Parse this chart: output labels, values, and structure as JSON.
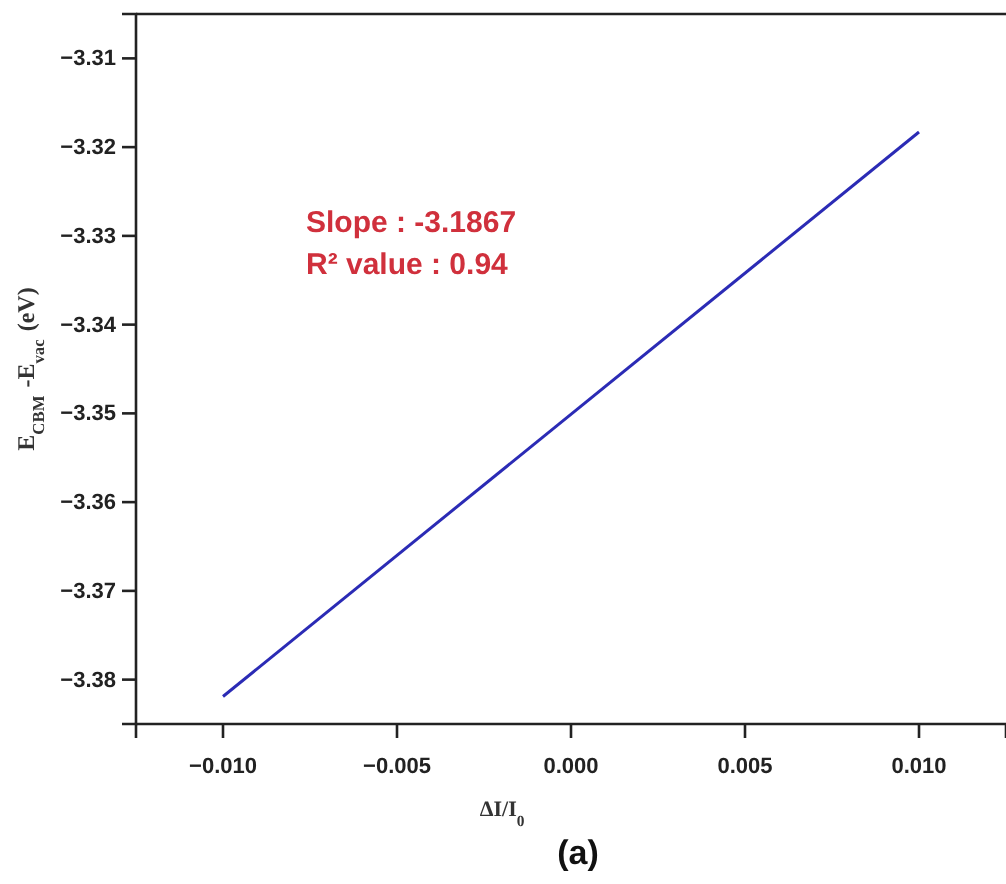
{
  "chart_data": {
    "type": "line",
    "xlabel": "ΔI/I$_{0}$",
    "ylabel": "E$_{CBM}$ -E$_{vac}$ (eV)",
    "x": [
      -0.01,
      0.01
    ],
    "series": [
      {
        "color": "#2b2bb5",
        "values": [
          -3.3819,
          -3.3183
        ]
      }
    ],
    "xlim": [
      -0.0125,
      0.0125
    ],
    "ylim": [
      -3.385,
      -3.305
    ],
    "xticks": [
      {
        "value": -0.01,
        "label": "−0.010"
      },
      {
        "value": -0.005,
        "label": "−0.005"
      },
      {
        "value": 0,
        "label": "0.000"
      },
      {
        "value": 0.005,
        "label": "0.005"
      },
      {
        "value": 0.01,
        "label": "0.010"
      }
    ],
    "yticks": [
      {
        "value": -3.38,
        "label": "−3.38"
      },
      {
        "value": -3.37,
        "label": "−3.37"
      },
      {
        "value": -3.36,
        "label": "−3.36"
      },
      {
        "value": -3.35,
        "label": "−3.35"
      },
      {
        "value": -3.34,
        "label": "−3.34"
      },
      {
        "value": -3.33,
        "label": "−3.33"
      },
      {
        "value": -3.32,
        "label": "−3.32"
      },
      {
        "value": -3.31,
        "label": "−3.31"
      }
    ],
    "annotations": [
      "Slope : -3.1867",
      "R² value : 0.94",
      "(a)"
    ],
    "grid": false,
    "marker": "none",
    "line_style": "solid"
  }
}
